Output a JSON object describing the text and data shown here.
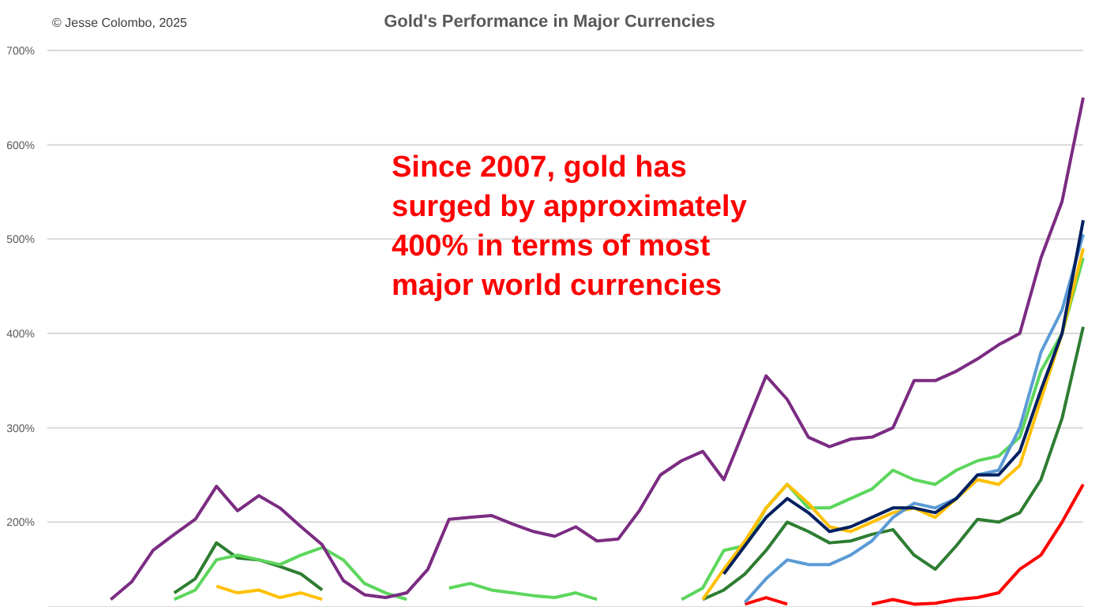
{
  "chart_data": {
    "type": "line",
    "title": "Gold's Performance in Major Currencies",
    "annotations": [
      "© Jesse Colombo, 2025",
      "Since 2007, gold has surged by approximately 400% in terms of most major world currencies"
    ],
    "categories": [
      null,
      null,
      null,
      null,
      null,
      null,
      null,
      null,
      null,
      null,
      null,
      null,
      null,
      null,
      null,
      null,
      null,
      null,
      null,
      null,
      null,
      null,
      null,
      null,
      null,
      null,
      null,
      null,
      null,
      null,
      null,
      null,
      null,
      null,
      null,
      null,
      null,
      null,
      null,
      null,
      null,
      null,
      null,
      null,
      null,
      null,
      null,
      null,
      null,
      null
    ],
    "ylim": [
      110,
      700
    ],
    "yticks": [
      {
        "value": 200,
        "label": "200%"
      },
      {
        "value": 300,
        "label": "300%"
      },
      {
        "value": 400,
        "label": "400%"
      },
      {
        "value": 500,
        "label": "500%"
      },
      {
        "value": 600,
        "label": "600%"
      },
      {
        "value": 700,
        "label": "700%"
      }
    ],
    "grid": "y",
    "legend": false,
    "marker": "none",
    "line_style": "solid",
    "tick_labels": "y",
    "series": [
      {
        "color": "#ff0000",
        "values": [
          null,
          null,
          null,
          null,
          null,
          null,
          null,
          null,
          null,
          null,
          null,
          null,
          null,
          null,
          null,
          null,
          null,
          null,
          null,
          null,
          null,
          null,
          null,
          null,
          null,
          null,
          null,
          null,
          null,
          null,
          null,
          null,
          null,
          113,
          120,
          113,
          null,
          null,
          null,
          113,
          118,
          113,
          114,
          118,
          120,
          125,
          150,
          165,
          200,
          240
        ]
      },
      {
        "color": "#2e7d32",
        "values": [
          null,
          null,
          null,
          null,
          null,
          null,
          125,
          140,
          178,
          162,
          160,
          153,
          145,
          128,
          null,
          null,
          null,
          null,
          null,
          null,
          null,
          null,
          null,
          null,
          null,
          null,
          null,
          null,
          null,
          null,
          null,
          118,
          128,
          145,
          170,
          200,
          190,
          178,
          180,
          187,
          192,
          165,
          150,
          175,
          203,
          200,
          210,
          245,
          310,
          407
        ]
      },
      {
        "color": "#5cd65c",
        "values": [
          null,
          null,
          null,
          null,
          null,
          null,
          118,
          128,
          160,
          165,
          160,
          155,
          165,
          173,
          160,
          135,
          125,
          118,
          null,
          130,
          135,
          128,
          125,
          122,
          120,
          125,
          118,
          null,
          null,
          null,
          118,
          130,
          170,
          175,
          215,
          240,
          215,
          215,
          225,
          235,
          255,
          245,
          240,
          255,
          265,
          270,
          290,
          360,
          400,
          480
        ]
      },
      {
        "color": "#ffc000",
        "values": [
          null,
          null,
          null,
          null,
          null,
          null,
          null,
          null,
          132,
          125,
          128,
          120,
          125,
          118,
          null,
          null,
          null,
          null,
          null,
          null,
          null,
          null,
          null,
          null,
          null,
          null,
          null,
          null,
          null,
          null,
          null,
          118,
          150,
          180,
          215,
          240,
          220,
          195,
          190,
          200,
          210,
          215,
          205,
          225,
          245,
          240,
          260,
          330,
          400,
          490
        ]
      },
      {
        "color": "#5b9bd5",
        "values": [
          null,
          null,
          null,
          null,
          null,
          null,
          null,
          null,
          null,
          null,
          null,
          null,
          null,
          null,
          null,
          null,
          null,
          null,
          null,
          null,
          null,
          null,
          null,
          null,
          null,
          null,
          null,
          null,
          null,
          null,
          null,
          null,
          null,
          115,
          140,
          160,
          155,
          155,
          165,
          180,
          205,
          220,
          215,
          225,
          250,
          255,
          300,
          380,
          425,
          505
        ]
      },
      {
        "color": "#002060",
        "values": [
          null,
          null,
          null,
          null,
          null,
          null,
          null,
          null,
          null,
          null,
          null,
          null,
          null,
          null,
          null,
          null,
          null,
          null,
          null,
          null,
          null,
          null,
          null,
          null,
          null,
          null,
          null,
          null,
          null,
          null,
          null,
          null,
          145,
          175,
          205,
          225,
          210,
          190,
          195,
          205,
          215,
          215,
          210,
          225,
          250,
          250,
          275,
          340,
          400,
          520
        ]
      },
      {
        "color": "#7b2c82",
        "values": [
          null,
          null,
          null,
          118,
          137,
          170,
          187,
          203,
          238,
          212,
          228,
          215,
          195,
          176,
          138,
          123,
          120,
          125,
          150,
          203,
          205,
          207,
          198,
          190,
          185,
          195,
          180,
          182,
          212,
          250,
          265,
          275,
          245,
          300,
          355,
          330,
          290,
          280,
          288,
          290,
          300,
          350,
          350,
          360,
          373,
          388,
          400,
          480,
          540,
          650
        ]
      }
    ]
  }
}
